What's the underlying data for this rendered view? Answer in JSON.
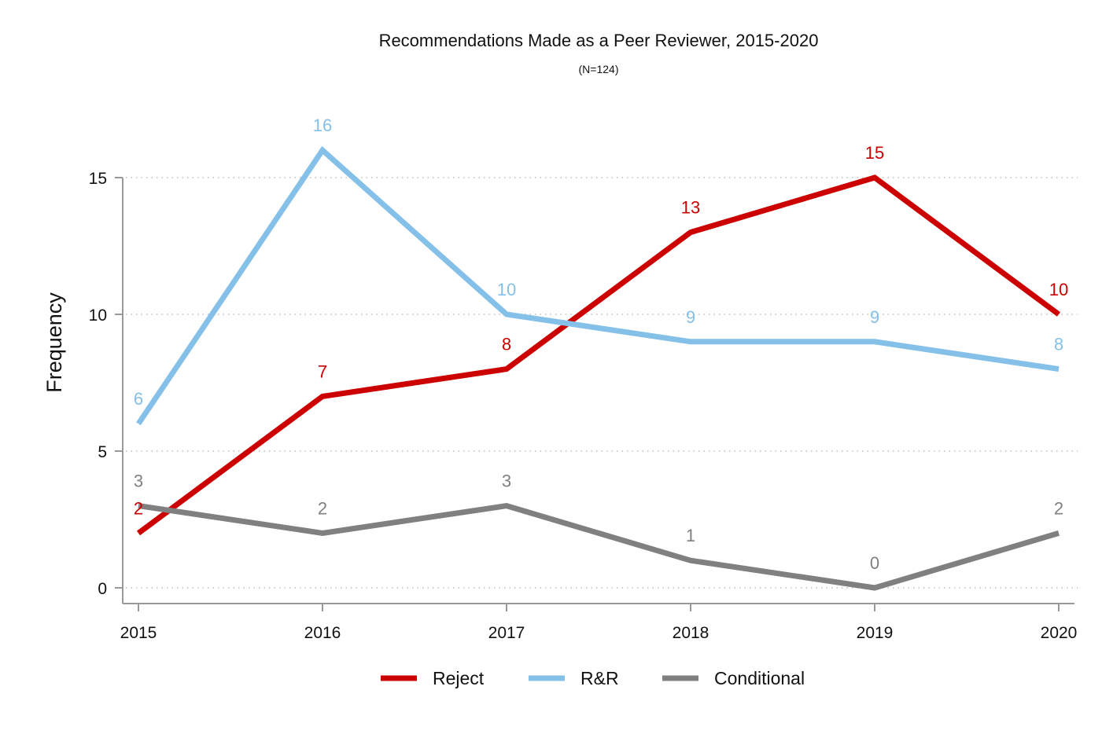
{
  "chart_data": {
    "type": "line",
    "title": "Recommendations Made as a Peer Reviewer, 2015-2020",
    "subtitle": "(N=124)",
    "xlabel": "",
    "ylabel": "Frequency",
    "x": [
      "2015",
      "2016",
      "2017",
      "2018",
      "2019",
      "2020"
    ],
    "ylim": [
      0,
      17.5
    ],
    "yticks": [
      0,
      5,
      10,
      15
    ],
    "grid": true,
    "legend_position": "bottom",
    "series": [
      {
        "name": "Reject",
        "color": "#cc0000",
        "values": [
          2,
          7,
          8,
          13,
          15,
          10
        ]
      },
      {
        "name": "R&R",
        "color": "#85c0e9",
        "values": [
          6,
          16,
          10,
          9,
          9,
          8
        ]
      },
      {
        "name": "Conditional",
        "color": "#808080",
        "values": [
          3,
          2,
          3,
          1,
          0,
          2
        ]
      }
    ]
  }
}
